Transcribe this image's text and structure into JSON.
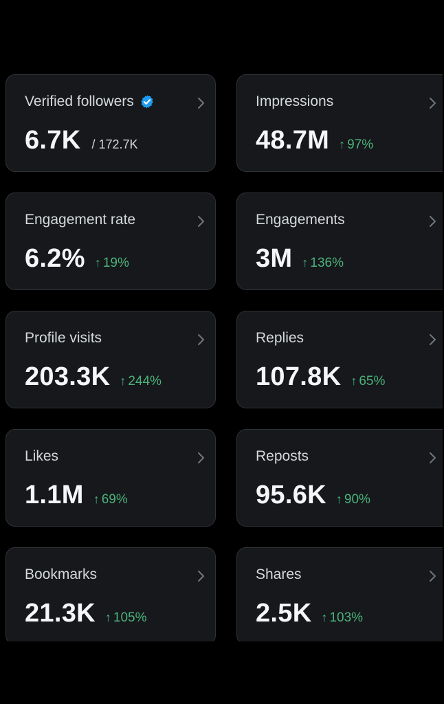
{
  "colors": {
    "background": "#000000",
    "card": "#16181c",
    "border": "#2f3336",
    "positive": "#4bb37a",
    "verified": "#1d9bf0"
  },
  "cards": [
    {
      "label": "Verified followers",
      "value": "6.7K",
      "total": "/ 172.7K",
      "verified_icon": "verified-badge-icon"
    },
    {
      "label": "Impressions",
      "value": "48.7M",
      "change": "97%"
    },
    {
      "label": "Engagement rate",
      "value": "6.2%",
      "change": "19%"
    },
    {
      "label": "Engagements",
      "value": "3M",
      "change": "136%"
    },
    {
      "label": "Profile visits",
      "value": "203.3K",
      "change": "244%"
    },
    {
      "label": "Replies",
      "value": "107.8K",
      "change": "65%"
    },
    {
      "label": "Likes",
      "value": "1.1M",
      "change": "69%"
    },
    {
      "label": "Reposts",
      "value": "95.6K",
      "change": "90%"
    },
    {
      "label": "Bookmarks",
      "value": "21.3K",
      "change": "105%"
    },
    {
      "label": "Shares",
      "value": "2.5K",
      "change": "103%"
    }
  ]
}
